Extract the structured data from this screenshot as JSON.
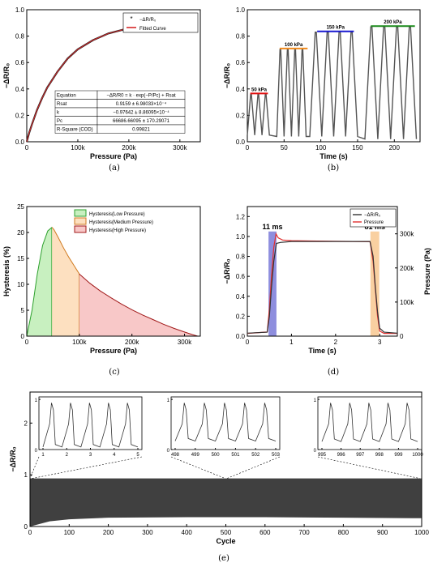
{
  "chart_data": [
    {
      "id": "a",
      "type": "line",
      "caption": "(a)",
      "xlabel": "Pressure (Pa)",
      "ylabel": "−ΔR/R₀",
      "xlim": [
        0,
        340000
      ],
      "ylim": [
        0,
        1.0
      ],
      "xticks": [
        0,
        100000,
        200000,
        300000
      ],
      "xtick_labels": [
        "0",
        "100k",
        "200k",
        "300k"
      ],
      "yticks": [
        0.0,
        0.2,
        0.4,
        0.6,
        0.8,
        1.0
      ],
      "ytick_labels": [
        "0.0",
        "0.2",
        "0.4",
        "0.6",
        "0.8",
        "1.0"
      ],
      "legend": [
        "−ΔR/R₀",
        "Fitted Curve"
      ],
      "fit": {
        "Rsat": 0.9159,
        "k": -0.97642,
        "Pc": 66686.66
      },
      "series": [
        {
          "name": "−ΔR/R₀",
          "color": "#222222",
          "x": [
            0,
            5000,
            10000,
            20000,
            30000,
            40000,
            60000,
            80000,
            100000,
            130000,
            160000,
            200000,
            240000,
            280000,
            320000
          ],
          "values": [
            0.0,
            0.07,
            0.13,
            0.24,
            0.33,
            0.41,
            0.53,
            0.63,
            0.7,
            0.77,
            0.82,
            0.86,
            0.89,
            0.9,
            0.91
          ]
        },
        {
          "name": "Fitted Curve",
          "color": "#d62728",
          "x": [
            0,
            5000,
            10000,
            20000,
            30000,
            40000,
            60000,
            80000,
            100000,
            130000,
            160000,
            200000,
            240000,
            280000,
            320000
          ],
          "values": [
            0.0,
            0.07,
            0.13,
            0.24,
            0.33,
            0.41,
            0.53,
            0.63,
            0.7,
            0.77,
            0.82,
            0.86,
            0.89,
            0.9,
            0.91
          ]
        }
      ],
      "table": [
        [
          "Equation",
          "−ΔR/R0 = k · exp(−P/Pc) + Rsat"
        ],
        [
          "Rsat",
          "0.9159 ± 6.98033×10⁻⁴"
        ],
        [
          "k",
          "−0.97642 ± 8.86095×10⁻⁴"
        ],
        [
          "Pc",
          "66686.66095 ± 170.29071"
        ],
        [
          "R-Square (COD)",
          "0.99821"
        ]
      ]
    },
    {
      "id": "b",
      "type": "line",
      "caption": "(b)",
      "xlabel": "Time (s)",
      "ylabel": "−ΔR/R₀",
      "xlim": [
        0,
        235
      ],
      "ylim": [
        0,
        1.0
      ],
      "xticks": [
        0,
        50,
        100,
        150,
        200
      ],
      "xtick_labels": [
        "0",
        "50",
        "100",
        "150",
        "200"
      ],
      "yticks": [
        0.0,
        0.2,
        0.4,
        0.6,
        0.8,
        1.0
      ],
      "ytick_labels": [
        "0.0",
        "0.2",
        "0.4",
        "0.6",
        "0.8",
        "1.0"
      ],
      "annotations": [
        {
          "text": "50 kPa",
          "color": "#e01010",
          "x_start": 4,
          "x_end": 28,
          "y": 0.36
        },
        {
          "text": "100 kPa",
          "color": "#f08a1c",
          "x_start": 44,
          "x_end": 82,
          "y": 0.7
        },
        {
          "text": "150 kPa",
          "color": "#1a1ad0",
          "x_start": 95,
          "x_end": 145,
          "y": 0.83
        },
        {
          "text": "200 kPa",
          "color": "#1c8a1c",
          "x_start": 168,
          "x_end": 228,
          "y": 0.87
        }
      ],
      "cycles": [
        {
          "start": 0,
          "end": 30,
          "n": 3,
          "peak": 0.36,
          "base": 0.05
        },
        {
          "start": 40,
          "end": 80,
          "n": 4,
          "peak": 0.7,
          "base": 0.04
        },
        {
          "start": 85,
          "end": 150,
          "n": 4,
          "peak": 0.83,
          "base": 0.04
        },
        {
          "start": 160,
          "end": 230,
          "n": 4,
          "peak": 0.87,
          "base": 0.02
        }
      ]
    },
    {
      "id": "c",
      "type": "area",
      "caption": "(c)",
      "xlabel": "Pressure (Pa)",
      "ylabel": "Hysteresis (%)",
      "xlim": [
        0,
        330000
      ],
      "ylim": [
        0,
        25
      ],
      "xticks": [
        0,
        100000,
        200000,
        300000
      ],
      "xtick_labels": [
        "0",
        "100k",
        "200k",
        "300k"
      ],
      "yticks": [
        0,
        5,
        10,
        15,
        20,
        25
      ],
      "ytick_labels": [
        "0",
        "5",
        "10",
        "15",
        "20",
        "25"
      ],
      "legend": [
        "Hysteresis(Low Pressure)",
        "Hysteresis(Medium Pressure)",
        "Hysteresis(High Pressure)"
      ],
      "x": [
        0,
        10000,
        20000,
        30000,
        40000,
        48000,
        52000,
        60000,
        70000,
        80000,
        90000,
        100000,
        120000,
        140000,
        160000,
        180000,
        200000,
        220000,
        240000,
        260000,
        280000,
        300000,
        315000,
        325000
      ],
      "values": [
        0,
        5,
        12,
        17.5,
        20.3,
        21.0,
        20.5,
        19.0,
        17.0,
        15.2,
        13.6,
        12.0,
        10.2,
        8.7,
        7.4,
        6.2,
        5.1,
        4.1,
        3.2,
        2.3,
        1.5,
        0.8,
        0.3,
        0
      ],
      "regions": [
        {
          "name": "Hysteresis(Low Pressure)",
          "from": 0,
          "to": 48000,
          "fill": "#c8f0c0",
          "stroke": "#2ca02c"
        },
        {
          "name": "Hysteresis(Medium Pressure)",
          "from": 48000,
          "to": 100000,
          "fill": "#fde0c0",
          "stroke": "#d07a20"
        },
        {
          "name": "Hysteresis(High Pressure)",
          "from": 100000,
          "to": 325000,
          "fill": "#f8c8c8",
          "stroke": "#a01818"
        }
      ]
    },
    {
      "id": "d",
      "type": "line",
      "caption": "(d)",
      "xlabel": "Time (s)",
      "ylabel": "−ΔR/R₀",
      "y2label": "Pressure (Pa)",
      "xlim": [
        0,
        3.4
      ],
      "ylim": [
        0,
        1.3
      ],
      "y2lim": [
        0,
        380000
      ],
      "xticks": [
        0,
        1,
        2,
        3
      ],
      "xtick_labels": [
        "0",
        "1",
        "2",
        "3"
      ],
      "yticks": [
        0.0,
        0.2,
        0.4,
        0.6,
        0.8,
        1.0,
        1.2
      ],
      "ytick_labels": [
        "0.0",
        "0.2",
        "0.4",
        "0.6",
        "0.8",
        "1.0",
        "1.2"
      ],
      "y2ticks": [
        0,
        100000,
        200000,
        300000
      ],
      "y2tick_labels": [
        "0",
        "100k",
        "200k",
        "300k"
      ],
      "legend": [
        "−ΔR/R₀",
        "Pressure"
      ],
      "annotations": [
        {
          "text": "11 ms",
          "color": "#1a2ad0",
          "x_start": 0.48,
          "x_end": 0.66,
          "band_fill": "#7a7ad8"
        },
        {
          "text": "81 ms",
          "color": "#e08a10",
          "x_start": 2.79,
          "x_end": 2.99,
          "band_fill": "#f8c890"
        }
      ],
      "series": [
        {
          "name": "−ΔR/R₀",
          "color": "#333333",
          "x": [
            0,
            0.45,
            0.5,
            0.55,
            0.6,
            0.66,
            0.75,
            1.0,
            2.0,
            2.78,
            2.85,
            2.9,
            2.95,
            3.0,
            3.1,
            3.4
          ],
          "values": [
            0.03,
            0.04,
            0.2,
            0.5,
            0.75,
            0.93,
            0.94,
            0.95,
            0.95,
            0.95,
            0.8,
            0.5,
            0.25,
            0.08,
            0.04,
            0.03
          ]
        },
        {
          "name": "Pressure",
          "color": "#e03030",
          "axis": "y2",
          "x": [
            0,
            0.45,
            0.5,
            0.55,
            0.6,
            0.65,
            0.7,
            0.8,
            1.0,
            2.0,
            2.78,
            2.85,
            2.9,
            2.95,
            3.0,
            3.1,
            3.4
          ],
          "values": [
            8000,
            12000,
            80000,
            180000,
            260000,
            300000,
            288000,
            282000,
            280000,
            278000,
            277000,
            220000,
            140000,
            60000,
            15000,
            8000,
            8000
          ]
        }
      ]
    },
    {
      "id": "e",
      "type": "line",
      "caption": "(e)",
      "xlabel": "Cycle",
      "ylabel": "−ΔR/R₀",
      "xlim": [
        0,
        1000
      ],
      "ylim": [
        0,
        2.6
      ],
      "xticks": [
        0,
        100,
        200,
        300,
        400,
        500,
        600,
        700,
        800,
        900,
        1000
      ],
      "xtick_labels": [
        "0",
        "100",
        "200",
        "300",
        "400",
        "500",
        "600",
        "700",
        "800",
        "900",
        "1000"
      ],
      "yticks": [
        0,
        1,
        2
      ],
      "ytick_labels": [
        "0",
        "1",
        "2"
      ],
      "band": {
        "upper": 0.93,
        "lower_x": [
          0,
          50,
          100,
          200,
          400,
          600,
          800,
          1000
        ],
        "lower": [
          0.0,
          0.1,
          0.14,
          0.17,
          0.18,
          0.18,
          0.17,
          0.16
        ],
        "color": "#404040"
      },
      "insets": [
        {
          "xticks": [
            1,
            2,
            3,
            4,
            5
          ],
          "xtick_labels": [
            "1",
            "2",
            "3",
            "4",
            "5"
          ],
          "yticks": [
            0,
            1
          ],
          "ytick_labels": [
            "0",
            "1"
          ],
          "ylim": [
            0,
            1.05
          ],
          "peak": 0.93,
          "base": 0.05
        },
        {
          "xticks": [
            498,
            499,
            500,
            501,
            502,
            503
          ],
          "xtick_labels": [
            "498",
            "499",
            "500",
            "501",
            "502",
            "503"
          ],
          "yticks": [
            0,
            1
          ],
          "ytick_labels": [
            "0",
            "1"
          ],
          "ylim": [
            0,
            1.05
          ],
          "peak": 0.93,
          "base": 0.17
        },
        {
          "xticks": [
            995,
            996,
            997,
            998,
            999,
            1000
          ],
          "xtick_labels": [
            "995",
            "996",
            "997",
            "998",
            "999",
            "1000"
          ],
          "yticks": [
            0,
            1
          ],
          "ytick_labels": [
            "0",
            "1"
          ],
          "ylim": [
            0,
            1.05
          ],
          "peak": 0.93,
          "base": 0.16
        }
      ]
    }
  ]
}
